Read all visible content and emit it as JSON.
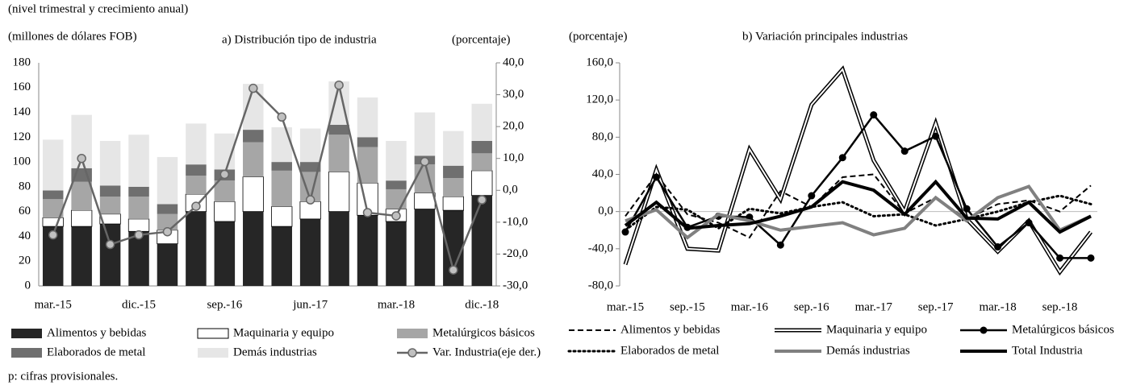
{
  "chart_data": [
    {
      "type": "bar",
      "subtitle": "(nivel trimestral y crecimiento anual)",
      "ylabel": "(millones  de dólares FOB)",
      "title": "a) Distribución tipo de industria",
      "y2label": "(porcentaje)",
      "categories": [
        "mar.-15",
        null,
        null,
        "dic.-15",
        null,
        null,
        "sep.-16",
        null,
        null,
        "jun.-17",
        null,
        null,
        "mar.-18",
        null,
        null,
        "dic.-18"
      ],
      "ylim": [
        0,
        180
      ],
      "yticks": [
        0,
        20,
        40,
        60,
        80,
        100,
        120,
        140,
        160,
        180
      ],
      "y2lim": [
        -30,
        40
      ],
      "y2ticks": [
        {
          "value": -30,
          "label": "-30,0"
        },
        {
          "value": -20,
          "label": "-20,0"
        },
        {
          "value": -10,
          "label": "-10,0"
        },
        {
          "value": 0,
          "label": "0,0"
        },
        {
          "value": 10,
          "label": "10,0"
        },
        {
          "value": 20,
          "label": "20,0"
        },
        {
          "value": 30,
          "label": "30,0"
        },
        {
          "value": 40,
          "label": "40,0"
        }
      ],
      "series": [
        {
          "name": "Alimentos y bebidas",
          "color": "#262626",
          "values": [
            48,
            48,
            50,
            44,
            34,
            60,
            52,
            60,
            48,
            54,
            60,
            57,
            52,
            62,
            61,
            73
          ]
        },
        {
          "name": "Maquinaria y equipo",
          "color": "#ffffff",
          "values": [
            7,
            13,
            8,
            10,
            11,
            14,
            16,
            28,
            16,
            14,
            32,
            26,
            10,
            13,
            11,
            20
          ]
        },
        {
          "name": "Metalúrgicos básicos",
          "color": "#a6a6a6",
          "values": [
            15,
            23,
            14,
            18,
            13,
            15,
            17,
            28,
            29,
            24,
            30,
            29,
            16,
            23,
            15,
            14
          ]
        },
        {
          "name": "Elaborados de metal",
          "color": "#6f6f6f",
          "values": [
            7,
            11,
            9,
            8,
            8,
            9,
            9,
            10,
            7,
            8,
            8,
            8,
            7,
            7,
            10,
            10
          ]
        },
        {
          "name": "Demás industrias",
          "color": "#e6e6e6",
          "values": [
            41,
            43,
            36,
            42,
            38,
            33,
            29,
            37,
            28,
            27,
            35,
            32,
            32,
            35,
            28,
            30
          ]
        },
        {
          "name": "Var. Industria(eje der.)",
          "color": "#666666",
          "axis": "y2",
          "type": "line",
          "values": [
            -14,
            10,
            -17,
            -14,
            -13,
            -5,
            5,
            32,
            23,
            -3,
            33,
            -7,
            -8,
            9,
            -25,
            -3
          ]
        }
      ]
    },
    {
      "type": "line",
      "ylabel": "(porcentaje)",
      "title": "b) Variación principales industrias",
      "categories": [
        "mar.-15",
        null,
        "sep.-15",
        null,
        "mar.-16",
        null,
        "sep.-16",
        null,
        "mar.-17",
        null,
        "sep.-17",
        null,
        "mar.-18",
        null,
        "sep.-18",
        null
      ],
      "ylim": [
        -80,
        160
      ],
      "yticks": [
        {
          "value": -80,
          "label": "-80,0"
        },
        {
          "value": -40,
          "label": "-40,0"
        },
        {
          "value": 0,
          "label": "0,0"
        },
        {
          "value": 40,
          "label": "40,0"
        },
        {
          "value": 80,
          "label": "80,0"
        },
        {
          "value": 120,
          "label": "120,0"
        },
        {
          "value": 160,
          "label": "160,0"
        }
      ],
      "series": [
        {
          "name": "Alimentos y bebidas",
          "color": "#000000",
          "style": "dashed",
          "values": [
            -5,
            40,
            -3,
            -12,
            -28,
            22,
            5,
            37,
            40,
            -2,
            15,
            -8,
            8,
            12,
            0,
            28
          ]
        },
        {
          "name": "Maquinaria y equipo",
          "color": "#000000",
          "style": "double",
          "values": [
            -57,
            45,
            -40,
            -42,
            67,
            13,
            115,
            153,
            55,
            0,
            95,
            -8,
            -43,
            -10,
            -65,
            -22
          ]
        },
        {
          "name": "Metalúrgicos básicos",
          "color": "#000000",
          "style": "marker",
          "values": [
            -22,
            37,
            -17,
            -5,
            -6,
            -36,
            17,
            58,
            104,
            65,
            81,
            3,
            -38,
            -12,
            -50,
            -50
          ]
        },
        {
          "name": "Elaborados de metal",
          "color": "#000000",
          "style": "dotted",
          "values": [
            -20,
            5,
            2,
            -18,
            3,
            -2,
            5,
            10,
            -5,
            -3,
            -15,
            -8,
            0,
            10,
            17,
            8
          ]
        },
        {
          "name": "Demás industrias",
          "color": "#808080",
          "style": "thick",
          "values": [
            -10,
            2,
            -28,
            -3,
            -10,
            -20,
            -16,
            -12,
            -25,
            -18,
            15,
            -10,
            15,
            27,
            -20,
            -5
          ]
        },
        {
          "name": "Total Industria",
          "color": "#000000",
          "style": "thick",
          "values": [
            -15,
            10,
            -18,
            -15,
            -13,
            -5,
            5,
            32,
            23,
            -3,
            32,
            -7,
            -8,
            10,
            -22,
            -5
          ]
        }
      ]
    }
  ],
  "note": "p: cifras provisionales."
}
